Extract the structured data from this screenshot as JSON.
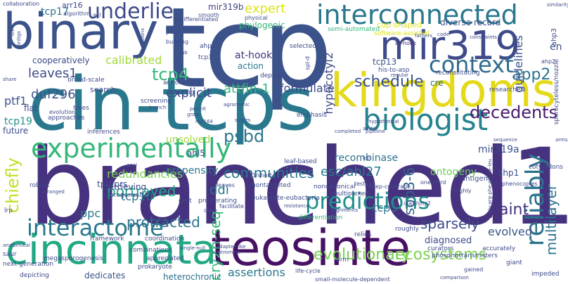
{
  "words": [
    {
      "text": "tcp",
      "color": "#3b528b"
    },
    {
      "text": "branched1",
      "color": "#46327e"
    },
    {
      "text": "cin-tcps",
      "color": "#2a788e"
    },
    {
      "text": "binary",
      "color": "#3b528b"
    },
    {
      "text": "kingdoms",
      "color": "#e4d91a"
    },
    {
      "text": "teosinte",
      "color": "#471164"
    },
    {
      "text": "mir319",
      "color": "#3e4a89"
    },
    {
      "text": "interconnected",
      "color": "#2a788e"
    },
    {
      "text": "experimentally",
      "color": "#35b779"
    },
    {
      "text": "cincinnata",
      "color": "#22a884"
    },
    {
      "text": "biologist",
      "color": "#26828e"
    },
    {
      "text": "underlie",
      "color": "#3e4a89"
    },
    {
      "text": "interactome",
      "color": "#2a788e"
    },
    {
      "text": "predictions",
      "color": "#21918c"
    },
    {
      "text": "reliably",
      "color": "#2c728e"
    },
    {
      "text": "context",
      "color": "#2f6c8e"
    },
    {
      "text": "tcp4",
      "color": "#35b779"
    },
    {
      "text": "decedents",
      "color": "#481a6c"
    },
    {
      "text": "chiefly",
      "color": "#c2df23"
    },
    {
      "text": "schedule",
      "color": "#3b528b"
    },
    {
      "text": "app2",
      "color": "#2c728e"
    },
    {
      "text": "expert",
      "color": "#dde318"
    },
    {
      "text": "psbd",
      "color": "#2a768e"
    },
    {
      "text": "cry2h-seq",
      "color": "#35b779"
    },
    {
      "text": "multilayer",
      "color": "#2c738e"
    },
    {
      "text": "portrayed",
      "color": "#22a884"
    },
    {
      "text": "sob3-6",
      "color": "#33638d"
    },
    {
      "text": "sparsely",
      "color": "#3e4a89"
    },
    {
      "text": "tcp17",
      "color": "#2c728e"
    },
    {
      "text": "ecosystems",
      "color": "#7ad151"
    },
    {
      "text": "evolutionary",
      "color": "#7ad151"
    },
    {
      "text": "communities",
      "color": "#2a788e"
    },
    {
      "text": "protracted",
      "color": "#2c728e"
    },
    {
      "text": "duf296",
      "color": "#3b528b"
    },
    {
      "text": "leaves1",
      "color": "#3e4a89"
    },
    {
      "text": "paint",
      "color": "#46327e"
    },
    {
      "text": "hypocotyl2",
      "color": "#3e4a89"
    },
    {
      "text": "esc/ahl27",
      "color": "#2a788e"
    },
    {
      "text": "ddi",
      "color": "#2a788e"
    },
    {
      "text": "tcp10",
      "color": "#2c728e"
    },
    {
      "text": "tcp5",
      "color": "#2c728e"
    },
    {
      "text": "ppc",
      "color": "#2a788e"
    },
    {
      "text": "explicit",
      "color": "#3e4a89"
    },
    {
      "text": "guidelines",
      "color": "#3b528b"
    },
    {
      "text": "assertions",
      "color": "#2a788e"
    },
    {
      "text": "evolved",
      "color": "#3b528b"
    },
    {
      "text": "redundancies",
      "color": "#7ad151"
    },
    {
      "text": "attfin-1",
      "color": "#35b779"
    },
    {
      "text": "calibrated",
      "color": "#a0da39"
    },
    {
      "text": "formulate",
      "color": "#3e4a89"
    },
    {
      "text": "recombinase",
      "color": "#2c728e"
    },
    {
      "text": "ontogeny",
      "color": "#6ccd5a"
    },
    {
      "text": "mir319a",
      "color": "#3b528b"
    },
    {
      "text": "mir319b",
      "color": "#414487"
    },
    {
      "text": "ptf1",
      "color": "#3b528b"
    },
    {
      "text": "tcp19",
      "color": "#21918c"
    },
    {
      "text": "en",
      "color": "#3b528b"
    },
    {
      "text": "diagnosed",
      "color": "#3e4a89"
    },
    {
      "text": "retrieving",
      "color": "#3e4a89"
    },
    {
      "text": "tpl/tprs",
      "color": "#3e4a89"
    },
    {
      "text": "propensity",
      "color": "#2a788e"
    },
    {
      "text": "unsolved",
      "color": "#a0da39"
    },
    {
      "text": "ahl5",
      "color": "#3b528b"
    },
    {
      "text": "dedicates",
      "color": "#3b528b"
    },
    {
      "text": "heterochronic",
      "color": "#2c728e"
    },
    {
      "text": "at-hook",
      "color": "#46327e"
    },
    {
      "text": "action",
      "color": "#2a788e"
    },
    {
      "text": "tcp13",
      "color": "#3b528b"
    },
    {
      "text": "cup-shaped",
      "color": "#dde318"
    },
    {
      "text": "record",
      "color": "#3e4a89"
    },
    {
      "text": "diverse",
      "color": "#3b528b"
    },
    {
      "text": "cre",
      "color": "#2c728e"
    },
    {
      "text": "phylogenic",
      "color": "#35b779"
    },
    {
      "text": "flat",
      "color": "#414487"
    },
    {
      "text": "future",
      "color": "#3e4a89"
    },
    {
      "text": "search",
      "color": "#3e4a89"
    },
    {
      "text": "cooperatively",
      "color": "#3e4a89"
    },
    {
      "text": "arr16",
      "color": "#3e4a89"
    },
    {
      "text": "ahp1",
      "color": "#3e4a89"
    },
    {
      "text": "ahp3",
      "color": "#3e4a89"
    },
    {
      "text": "antigen",
      "color": "#3e4a89"
    },
    {
      "text": "collaboration",
      "color": "#3e4a89"
    },
    {
      "text": "prokaryote",
      "color": "#3e4a89"
    },
    {
      "text": "megasporogenesis",
      "color": "#3e4a89"
    },
    {
      "text": "sporogenesis",
      "color": "#3e4a89"
    },
    {
      "text": "eukaryote-eubacteria",
      "color": "#3e4a89"
    },
    {
      "text": "nontargeted",
      "color": "#3e4a89"
    },
    {
      "text": "framework",
      "color": "#3e4a89"
    },
    {
      "text": "coordination",
      "color": "#3e4a89"
    },
    {
      "text": "proliferating",
      "color": "#3e4a89"
    },
    {
      "text": "cost",
      "color": "#3e4a89"
    },
    {
      "text": "multiplexed",
      "color": "#3e4a89"
    },
    {
      "text": "noncanonical",
      "color": "#3e4a89"
    },
    {
      "text": "curators",
      "color": "#3e4a89"
    },
    {
      "text": "roughly",
      "color": "#3e4a89"
    },
    {
      "text": "relies",
      "color": "#3e4a89"
    },
    {
      "text": "brm",
      "color": "#3e4a89"
    },
    {
      "text": "combinations",
      "color": "#3e4a89"
    },
    {
      "text": "appreciated",
      "color": "#3e4a89"
    },
    {
      "text": "accurately",
      "color": "#3e4a89"
    },
    {
      "text": "phosphotransmitters",
      "color": "#3e4a89"
    },
    {
      "text": "giant",
      "color": "#3e4a89"
    },
    {
      "text": "impeded",
      "color": "#3e4a89"
    },
    {
      "text": "depicting",
      "color": "#3e4a89"
    },
    {
      "text": "next-generation",
      "color": "#3e4a89"
    },
    {
      "text": "saur",
      "color": "#3e4a89"
    },
    {
      "text": "lrp",
      "color": "#3e4a89"
    },
    {
      "text": "robust",
      "color": "#3e4a89"
    },
    {
      "text": "cotyledons",
      "color": "#3e4a89"
    },
    {
      "text": "sporocyteless/nozzle",
      "color": "#3e4a89"
    },
    {
      "text": "researches",
      "color": "#3e4a89"
    },
    {
      "text": "reconstituting",
      "color": "#3e4a89"
    },
    {
      "text": "his-to-asp",
      "color": "#3e4a89"
    },
    {
      "text": "software-assisted",
      "color": "#dde318"
    },
    {
      "text": "semi-automated",
      "color": "#35b779"
    },
    {
      "text": "at-hook",
      "color": "#46327e"
    },
    {
      "text": "broad-scale",
      "color": "#3e4a89"
    },
    {
      "text": "annotations",
      "color": "#3e4a89"
    },
    {
      "text": "rewiring",
      "color": "#3e4a89"
    },
    {
      "text": "screening",
      "color": "#3e4a89"
    },
    {
      "text": "inferences",
      "color": "#3e4a89"
    },
    {
      "text": "approaches",
      "color": "#3e4a89"
    },
    {
      "text": "trees",
      "color": "#3e4a89"
    },
    {
      "text": "evolution",
      "color": "#3e4a89"
    },
    {
      "text": "emphasis",
      "color": "#3e4a89"
    },
    {
      "text": "deploy",
      "color": "#3e4a89"
    },
    {
      "text": "selected",
      "color": "#3e4a89"
    },
    {
      "text": "leaf-based",
      "color": "#3e4a89"
    },
    {
      "text": "tcp3",
      "color": "#3e4a89"
    },
    {
      "text": "ahps",
      "color": "#3e4a89"
    },
    {
      "text": "building",
      "color": "#3e4a89"
    },
    {
      "text": "pale",
      "color": "#3e4a89"
    },
    {
      "text": "algorithm",
      "color": "#3e4a89"
    },
    {
      "text": "asl",
      "color": "#3e4a89"
    },
    {
      "text": "smooth",
      "color": "#3e4a89"
    },
    {
      "text": "undifferentiated",
      "color": "#3e4a89"
    },
    {
      "text": "physical",
      "color": "#3e4a89"
    },
    {
      "text": "testing",
      "color": "#3e4a89"
    },
    {
      "text": "one-third",
      "color": "#3e4a89"
    },
    {
      "text": "deep-coverage",
      "color": "#3e4a89"
    },
    {
      "text": "iaa3/shy2",
      "color": "#3e4a89"
    },
    {
      "text": "differentiation",
      "color": "#35b779"
    },
    {
      "text": "small-molecule-dependent",
      "color": "#3e4a89"
    },
    {
      "text": "comparison",
      "color": "#3e4a89"
    },
    {
      "text": "life-cycle",
      "color": "#3e4a89"
    },
    {
      "text": "gained",
      "color": "#3e4a89"
    },
    {
      "text": "acid3/short",
      "color": "#3e4a89"
    },
    {
      "text": "facilitate",
      "color": "#3e4a89"
    },
    {
      "text": "dose",
      "color": "#3e4a89"
    },
    {
      "text": "leaves",
      "color": "#3e4a89"
    },
    {
      "text": "highly",
      "color": "#3e4a89"
    },
    {
      "text": "arms",
      "color": "#3e4a89"
    },
    {
      "text": "sequence",
      "color": "#3e4a89"
    },
    {
      "text": "pipeline",
      "color": "#3e4a89"
    },
    {
      "text": "agronomic",
      "color": "#3e4a89"
    },
    {
      "text": "scores",
      "color": "#3e4a89"
    },
    {
      "text": "mir164",
      "color": "#3e4a89"
    },
    {
      "text": "permit",
      "color": "#3e4a89"
    },
    {
      "text": "grow",
      "color": "#3e4a89"
    },
    {
      "text": "branch",
      "color": "#3e4a89"
    },
    {
      "text": "hypothetical",
      "color": "#3e4a89"
    },
    {
      "text": "ambit",
      "color": "#3e4a89"
    },
    {
      "text": "completed",
      "color": "#3e4a89"
    },
    {
      "text": "fathers",
      "color": "#3e4a89"
    },
    {
      "text": "code",
      "color": "#3e4a89"
    },
    {
      "text": "regular",
      "color": "#3e4a89"
    },
    {
      "text": "constraints",
      "color": "#3e4a89"
    },
    {
      "text": "similarity",
      "color": "#3e4a89"
    },
    {
      "text": "single-null",
      "color": "#3e4a89"
    },
    {
      "text": "centromere",
      "color": "#3e4a89"
    },
    {
      "text": "anatomical",
      "color": "#3e4a89"
    },
    {
      "text": "arranged",
      "color": "#3e4a89"
    },
    {
      "text": "phenocopies",
      "color": "#3e4a89"
    },
    {
      "text": "gly-arg-phe-glu-ile-leu",
      "color": "#3e4a89"
    },
    {
      "text": "operations",
      "color": "#3e4a89"
    },
    {
      "text": "spl-d",
      "color": "#3e4a89"
    },
    {
      "text": "alignments",
      "color": "#3e4a89"
    },
    {
      "text": "adapter-like",
      "color": "#3e4a89"
    },
    {
      "text": "resistance",
      "color": "#3e4a89"
    },
    {
      "text": "loci",
      "color": "#3e4a89"
    },
    {
      "text": "share",
      "color": "#3e4a89"
    },
    {
      "text": "goal",
      "color": "#3e4a89"
    },
    {
      "text": "contigs",
      "color": "#3e4a89"
    },
    {
      "text": "ab",
      "color": "#3e4a89"
    },
    {
      "text": "spp",
      "color": "#3e4a89"
    },
    {
      "text": "ahp2",
      "color": "#3e4a89"
    }
  ]
}
